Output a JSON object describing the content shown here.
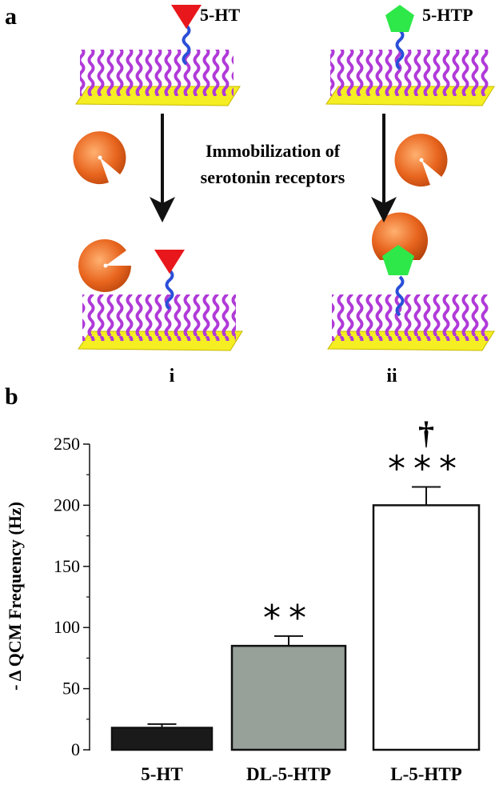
{
  "panel_a": {
    "label": "a",
    "molecule_labels": [
      "5-HT",
      "5-HTP"
    ],
    "arrow_label": [
      "Immobilization of",
      "serotonin receptors"
    ],
    "outcome_labels": [
      "i",
      "ii"
    ]
  },
  "panel_b": {
    "label": "b"
  },
  "chart_data": {
    "type": "bar",
    "y_label": "- Δ QCM Frequency (Hz)",
    "categories": [
      "5-HT",
      "DL-5-HTP",
      "L-5-HTP"
    ],
    "values": [
      18,
      85,
      200
    ],
    "errors": [
      3,
      8,
      15
    ],
    "colors": [
      "#1a1a1a",
      "#97a19a",
      "#ffffff"
    ],
    "significance": [
      null,
      "**",
      "***"
    ],
    "dagger": [
      null,
      null,
      "†"
    ],
    "ylim": [
      0,
      250
    ],
    "yticks": [
      0,
      50,
      100,
      150,
      200,
      250
    ],
    "yminor_ticks": [
      25,
      75,
      125,
      175,
      225
    ]
  }
}
